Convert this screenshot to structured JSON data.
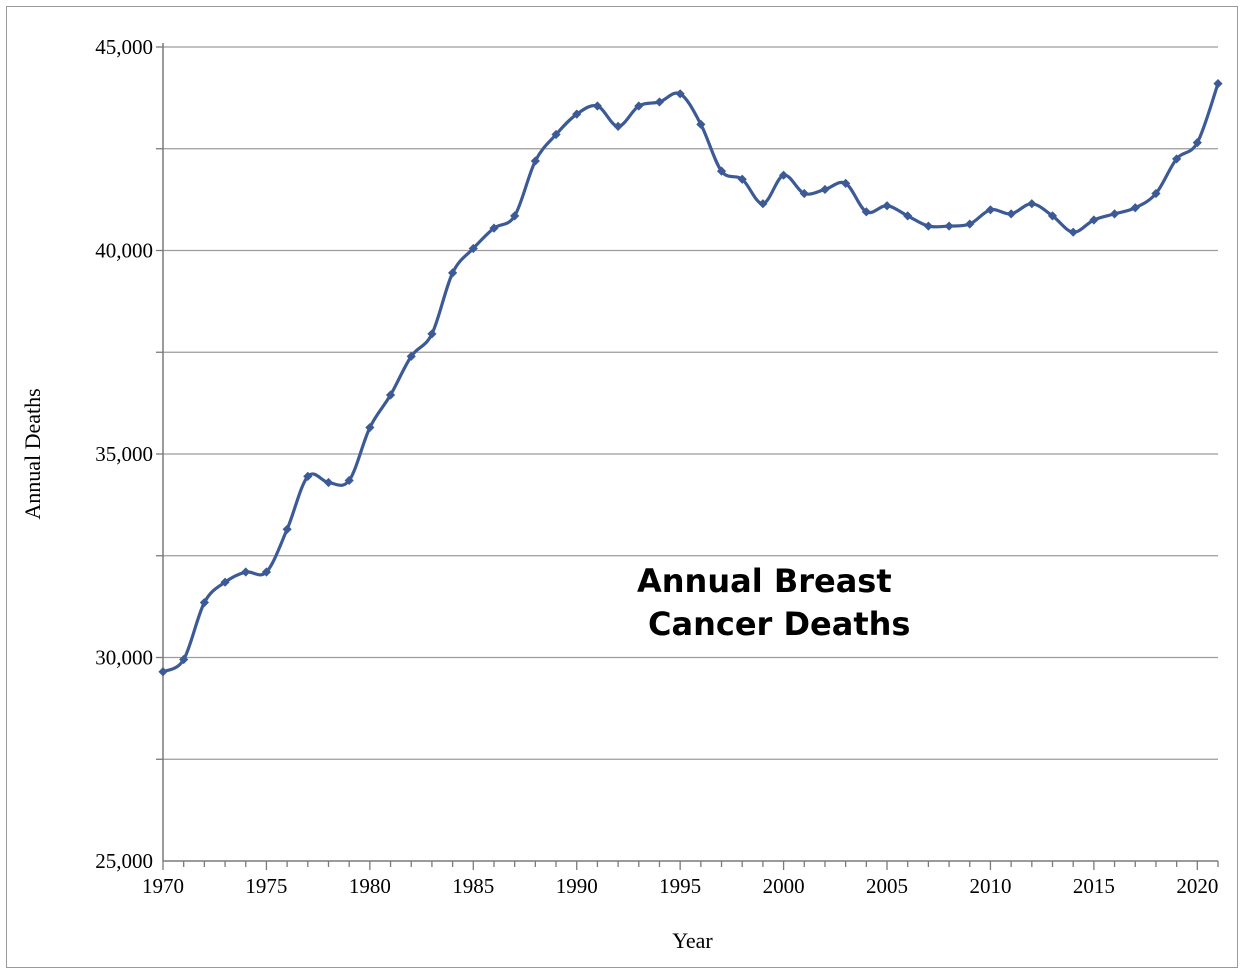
{
  "chart_data": {
    "type": "line",
    "title": "",
    "annotation": [
      "Annual Breast",
      "Cancer Deaths"
    ],
    "xlabel": "Year",
    "ylabel": "Annual Deaths",
    "xlim": [
      1970,
      2021
    ],
    "ylim": [
      25000,
      45000
    ],
    "x_ticks": [
      1970,
      1975,
      1980,
      1985,
      1990,
      1995,
      2000,
      2005,
      2010,
      2015,
      2020
    ],
    "y_ticks": [
      25000,
      30000,
      35000,
      40000,
      45000
    ],
    "y_tick_labels": [
      "25,000",
      "30,000",
      "35,000",
      "40,000",
      "45,000"
    ],
    "y_gridlines": [
      27500,
      30000,
      32500,
      35000,
      37500,
      40000,
      42500,
      45000
    ],
    "grid": "horizontal",
    "legend": "none",
    "marker": "diamond",
    "line_color": "#3c5a96",
    "series": [
      {
        "x": [
          1970,
          1971,
          1972,
          1973,
          1974,
          1975,
          1976,
          1977,
          1978,
          1979,
          1980,
          1981,
          1982,
          1983,
          1984,
          1985,
          1986,
          1987,
          1988,
          1989,
          1990,
          1991,
          1992,
          1993,
          1994,
          1995,
          1996,
          1997,
          1998,
          1999,
          2000,
          2001,
          2002,
          2003,
          2004,
          2005,
          2006,
          2007,
          2008,
          2009,
          2010,
          2011,
          2012,
          2013,
          2014,
          2015,
          2016,
          2017,
          2018,
          2019,
          2020,
          2021
        ],
        "values": [
          29650,
          29950,
          31350,
          31850,
          32100,
          32100,
          33150,
          34450,
          34300,
          34350,
          35650,
          36450,
          37400,
          37950,
          39450,
          40050,
          40550,
          40850,
          42200,
          42850,
          43350,
          43550,
          43050,
          43550,
          43650,
          43850,
          43100,
          41950,
          41750,
          41150,
          41850,
          41400,
          41500,
          41650,
          40950,
          41100,
          40850,
          40600,
          40600,
          40650,
          41000,
          40900,
          41150,
          40850,
          40450,
          40750,
          40900,
          41050,
          41400,
          42250,
          42650,
          44100
        ]
      }
    ]
  }
}
